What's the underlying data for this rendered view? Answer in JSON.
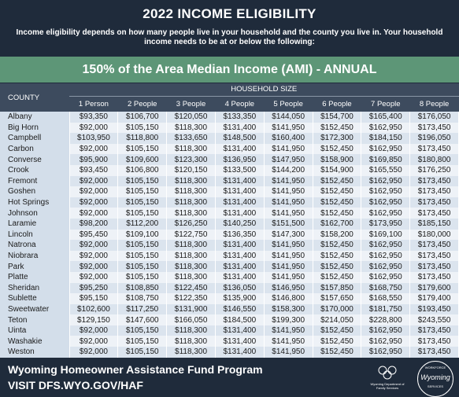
{
  "header": {
    "title": "2022 INCOME ELIGIBILITY",
    "subtitle": "Income eligibility depends on how many people live in your household and the county you live in. Your household income needs to be at or below the following:"
  },
  "banner": "150% of the Area Median Income (AMI) - ANNUAL",
  "table": {
    "county_header": "COUNTY",
    "group_header": "HOUSEHOLD SIZE",
    "columns": [
      "1 Person",
      "2 People",
      "3 People",
      "4 People",
      "5 People",
      "6 People",
      "7 People",
      "8 People"
    ],
    "rows": [
      [
        "Albany",
        "$93,350",
        "$106,700",
        "$120,050",
        "$133,350",
        "$144,050",
        "$154,700",
        "$165,400",
        "$176,050"
      ],
      [
        "Big Horn",
        "$92,000",
        "$105,150",
        "$118,300",
        "$131,400",
        "$141,950",
        "$152,450",
        "$162,950",
        "$173,450"
      ],
      [
        "Campbell",
        "$103,950",
        "$118,800",
        "$133,650",
        "$148,500",
        "$160,400",
        "$172,300",
        "$184,150",
        "$196,050"
      ],
      [
        "Carbon",
        "$92,000",
        "$105,150",
        "$118,300",
        "$131,400",
        "$141,950",
        "$152,450",
        "$162,950",
        "$173,450"
      ],
      [
        "Converse",
        "$95,900",
        "$109,600",
        "$123,300",
        "$136,950",
        "$147,950",
        "$158,900",
        "$169,850",
        "$180,800"
      ],
      [
        "Crook",
        "$93,450",
        "$106,800",
        "$120,150",
        "$133,500",
        "$144,200",
        "$154,900",
        "$165,550",
        "$176,250"
      ],
      [
        "Fremont",
        "$92,000",
        "$105,150",
        "$118,300",
        "$131,400",
        "$141,950",
        "$152,450",
        "$162,950",
        "$173,450"
      ],
      [
        "Goshen",
        "$92,000",
        "$105,150",
        "$118,300",
        "$131,400",
        "$141,950",
        "$152,450",
        "$162,950",
        "$173,450"
      ],
      [
        "Hot Springs",
        "$92,000",
        "$105,150",
        "$118,300",
        "$131,400",
        "$141,950",
        "$152,450",
        "$162,950",
        "$173,450"
      ],
      [
        "Johnson",
        "$92,000",
        "$105,150",
        "$118,300",
        "$131,400",
        "$141,950",
        "$152,450",
        "$162,950",
        "$173,450"
      ],
      [
        "Laramie",
        "$98,200",
        "$112,200",
        "$126,250",
        "$140,250",
        "$151,500",
        "$162,700",
        "$173,950",
        "$185,150"
      ],
      [
        "Lincoln",
        "$95,450",
        "$109,100",
        "$122,750",
        "$136,350",
        "$147,300",
        "$158,200",
        "$169,100",
        "$180,000"
      ],
      [
        "Natrona",
        "$92,000",
        "$105,150",
        "$118,300",
        "$131,400",
        "$141,950",
        "$152,450",
        "$162,950",
        "$173,450"
      ],
      [
        "Niobrara",
        "$92,000",
        "$105,150",
        "$118,300",
        "$131,400",
        "$141,950",
        "$152,450",
        "$162,950",
        "$173,450"
      ],
      [
        "Park",
        "$92,000",
        "$105,150",
        "$118,300",
        "$131,400",
        "$141,950",
        "$152,450",
        "$162,950",
        "$173,450"
      ],
      [
        "Platte",
        "$92,000",
        "$105,150",
        "$118,300",
        "$131,400",
        "$141,950",
        "$152,450",
        "$162,950",
        "$173,450"
      ],
      [
        "Sheridan",
        "$95,250",
        "$108,850",
        "$122,450",
        "$136,050",
        "$146,950",
        "$157,850",
        "$168,750",
        "$179,600"
      ],
      [
        "Sublette",
        "$95,150",
        "$108,750",
        "$122,350",
        "$135,900",
        "$146,800",
        "$157,650",
        "$168,550",
        "$179,400"
      ],
      [
        "Sweetwater",
        "$102,600",
        "$117,250",
        "$131,900",
        "$146,550",
        "$158,300",
        "$170,000",
        "$181,750",
        "$193,450"
      ],
      [
        "Teton",
        "$129,150",
        "$147,600",
        "$166,050",
        "$184,500",
        "$199,300",
        "$214,050",
        "$228,800",
        "$243,550"
      ],
      [
        "Uinta",
        "$92,000",
        "$105,150",
        "$118,300",
        "$131,400",
        "$141,950",
        "$152,450",
        "$162,950",
        "$173,450"
      ],
      [
        "Washakie",
        "$92,000",
        "$105,150",
        "$118,300",
        "$131,400",
        "$141,950",
        "$152,450",
        "$162,950",
        "$173,450"
      ],
      [
        "Weston",
        "$92,000",
        "$105,150",
        "$118,300",
        "$131,400",
        "$141,950",
        "$152,450",
        "$162,950",
        "$173,450"
      ]
    ]
  },
  "footer": {
    "program": "Wyoming Homeowner Assistance Fund Program",
    "visit": "VISIT DFS.WYO.GOV/HAF",
    "logo_dfs": "Wyoming Department of Family Services",
    "logo_workforce_top": "WORKFORCE",
    "logo_workforce_mid": "Wyoming",
    "logo_workforce_bottom": "SERVICES"
  }
}
